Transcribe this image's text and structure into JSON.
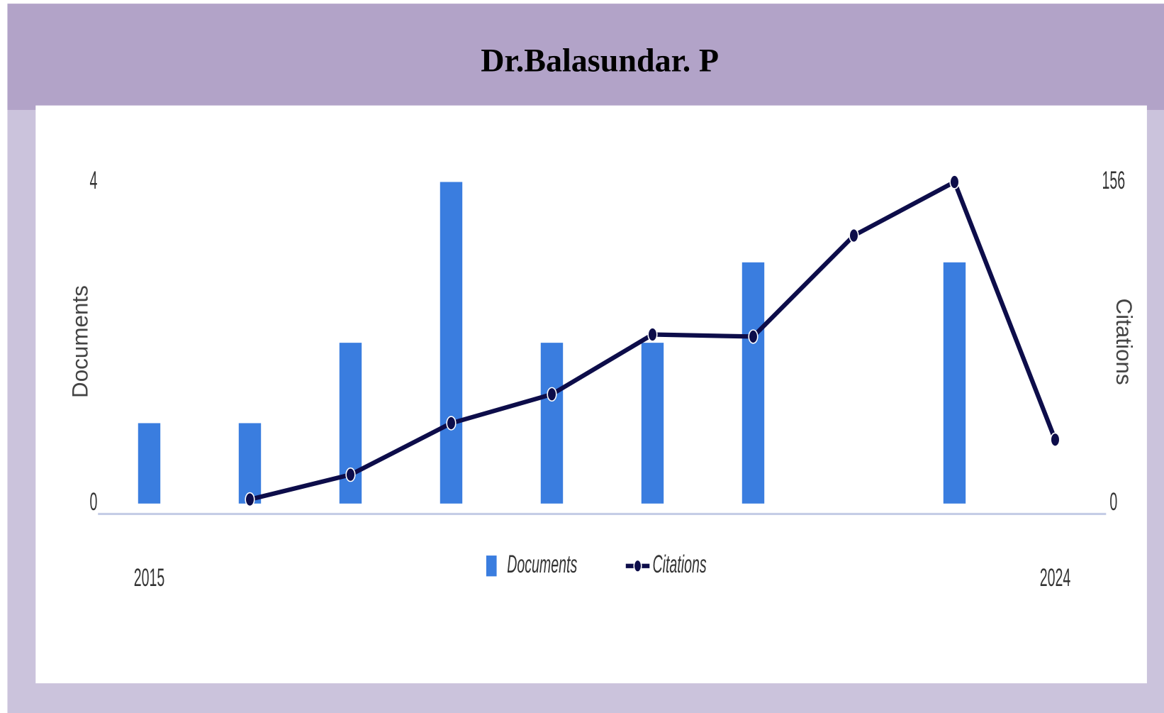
{
  "chart_data": {
    "type": "bar_line",
    "title": "Dr.Balasundar. P",
    "categories": [
      "2015",
      null,
      null,
      null,
      null,
      null,
      null,
      null,
      null,
      "2024"
    ],
    "series": [
      {
        "name": "Documents",
        "color": "#3a7ddf",
        "type": "bar",
        "axis": "y",
        "values": [
          1,
          1,
          2,
          4,
          2,
          2,
          3,
          0,
          3,
          0
        ]
      },
      {
        "name": "Citations",
        "color": "#0d0d4a",
        "type": "line",
        "axis": "y2",
        "values": [
          null,
          2,
          14,
          39,
          53,
          82,
          81,
          130,
          156,
          31
        ]
      }
    ],
    "y_label": "Documents",
    "y2_label": "Citations",
    "ylim": [
      0,
      4
    ],
    "yticks": [
      0,
      4
    ],
    "y2lim": [
      0,
      156
    ],
    "y2ticks": [
      0,
      156
    ],
    "legend": "bottom"
  }
}
